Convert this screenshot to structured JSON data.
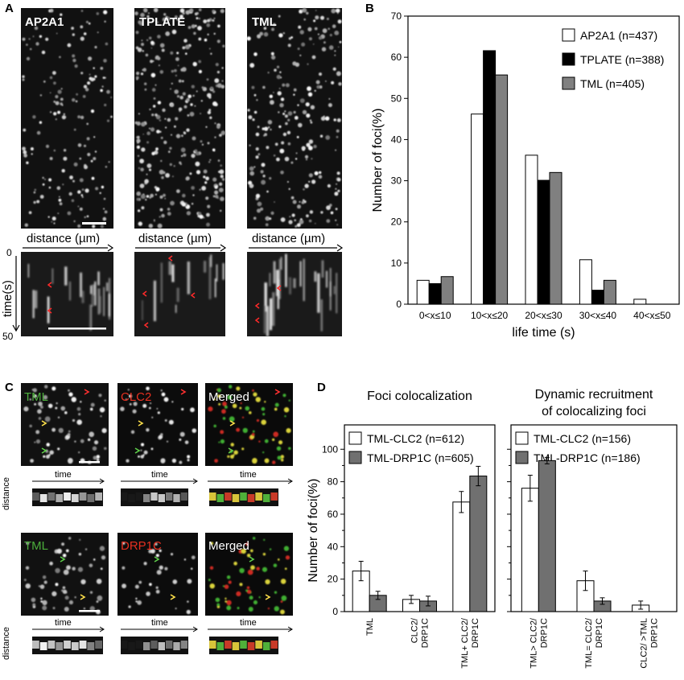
{
  "panels": {
    "A": {
      "letter": "A",
      "images": [
        {
          "label": "AP2A1",
          "label_color": "#ffffff"
        },
        {
          "label": "TPLATE",
          "label_color": "#ffffff"
        },
        {
          "label": "TML",
          "label_color": "#ffffff"
        }
      ],
      "distance_label": "distance (µm)",
      "time_label": "time(s)",
      "time_start": "0",
      "time_end": "50"
    },
    "B": {
      "letter": "B"
    },
    "C": {
      "letter": "C",
      "rows": [
        {
          "labels": [
            {
              "text": "TML",
              "color": "#4cae3c"
            },
            {
              "text": "CLC2",
              "color": "#e53020"
            },
            {
              "text": "Merged",
              "color": "#ffffff"
            }
          ]
        },
        {
          "labels": [
            {
              "text": "TML",
              "color": "#4cae3c"
            },
            {
              "text": "DRP1C",
              "color": "#e53020"
            },
            {
              "text": "Merged",
              "color": "#ffffff"
            }
          ]
        }
      ],
      "time_label": "time",
      "distance_label": "distance"
    },
    "D": {
      "letter": "D"
    }
  },
  "chart_data": [
    {
      "id": "B",
      "type": "bar",
      "categories": [
        "0<x≤10",
        "10<x≤20",
        "20<x≤30",
        "30<x≤40",
        "40<x≤50"
      ],
      "series": [
        {
          "name": "AP2A1 (n=437)",
          "values": [
            5.8,
            46.2,
            36.2,
            10.8,
            1.2
          ],
          "color": "#ffffff"
        },
        {
          "name": "TPLATE (n=388)",
          "values": [
            5.0,
            61.6,
            30.1,
            3.4,
            0
          ],
          "color": "#000000"
        },
        {
          "name": "TML (n=405)",
          "values": [
            6.7,
            55.7,
            32.0,
            5.8,
            0
          ],
          "color": "#808080"
        }
      ],
      "xlabel": "life time (s)",
      "ylabel": "Number of foci(%)",
      "ylim": [
        0,
        70
      ],
      "yticks": [
        "0",
        "10",
        "20",
        "30",
        "40",
        "50",
        "60",
        "70"
      ],
      "legend": "top-right",
      "grid": false
    },
    {
      "id": "D-left",
      "type": "bar",
      "title": "Foci colocalization",
      "categories": [
        "TML",
        "CLC2/ DRP1C",
        "TML+ CLC2/ DRP1C"
      ],
      "series": [
        {
          "name": "TML-CLC2 (n=612)",
          "values": [
            25,
            7.5,
            67.5
          ],
          "errors": [
            6,
            2.5,
            6.5
          ],
          "color": "#ffffff"
        },
        {
          "name": "TML-DRP1C (n=605)",
          "values": [
            10,
            6.5,
            83.5
          ],
          "errors": [
            2.5,
            3,
            6
          ],
          "color": "#707070"
        }
      ],
      "ylabel": "Number of foci(%)",
      "ylim": [
        0,
        115
      ],
      "yticks": [
        "0",
        "20",
        "40",
        "60",
        "80",
        "100"
      ],
      "legend": "top-left",
      "grid": false
    },
    {
      "id": "D-right",
      "type": "bar",
      "title": "Dynamic recruitment of colocalizing foci",
      "title_lines": [
        "Dynamic recruitment",
        "of colocalizing foci"
      ],
      "categories": [
        "TML> CLC2/ DRP1C",
        "TML= CLC2/ DRP1C",
        "CLC2/ >TML DRP1C"
      ],
      "series": [
        {
          "name": "TML-CLC2 (n=156)",
          "values": [
            76,
            19,
            4
          ],
          "errors": [
            8,
            6,
            2.5
          ],
          "color": "#ffffff"
        },
        {
          "name": "TML-DRP1C (n=186)",
          "values": [
            93,
            6.5,
            0
          ],
          "errors": [
            2,
            2,
            0
          ],
          "color": "#707070"
        }
      ],
      "ylim": [
        0,
        115
      ],
      "legend": "top-left",
      "grid": false
    }
  ]
}
